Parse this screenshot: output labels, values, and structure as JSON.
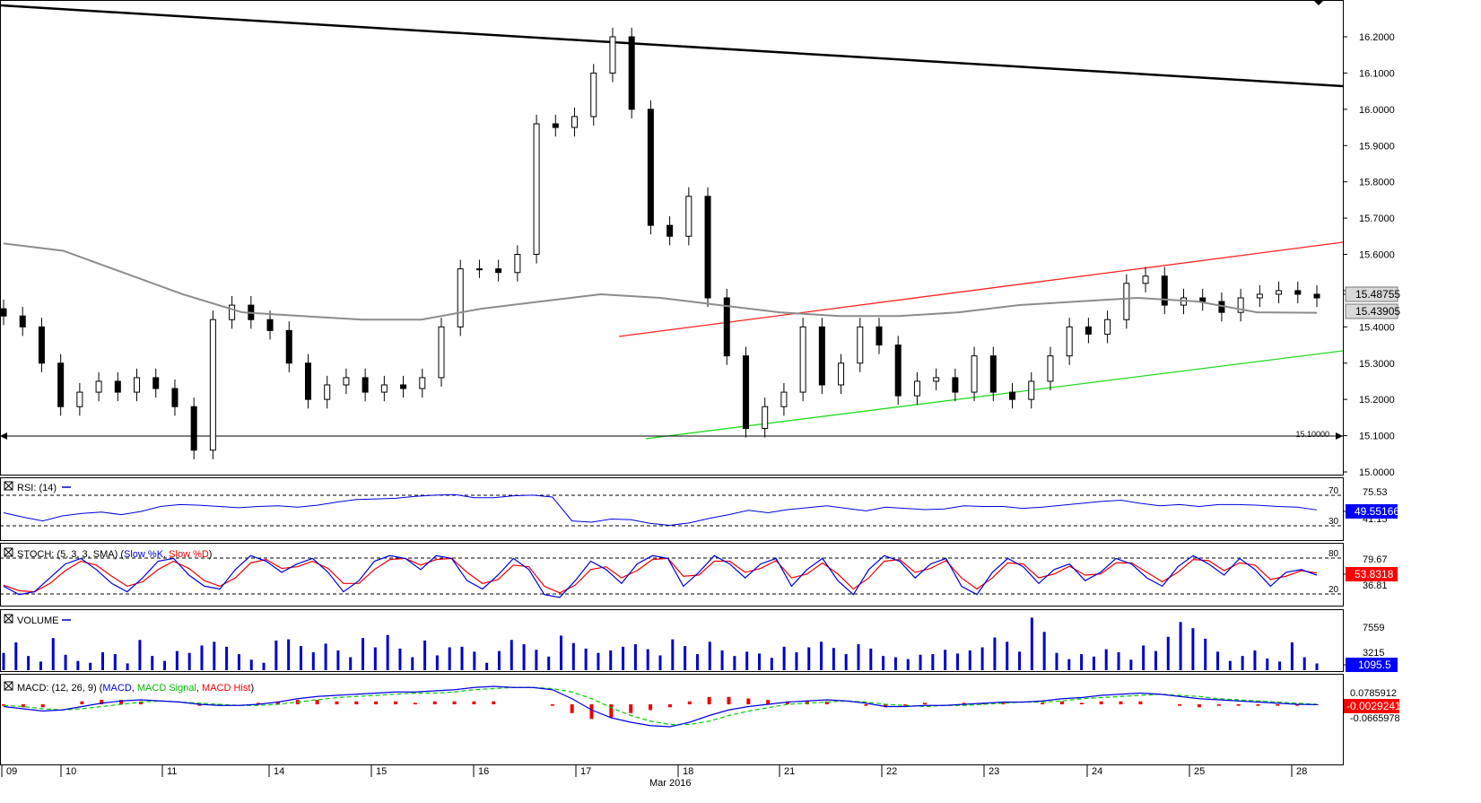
{
  "chart_data": {
    "type": "candlestick",
    "date_label": "Mar 2016",
    "x_labels": [
      "09",
      "10",
      "11",
      "14",
      "15",
      "16",
      "17",
      "18",
      "21",
      "22",
      "23",
      "24",
      "25",
      "28"
    ],
    "price": {
      "ylim": [
        15.0,
        16.25
      ],
      "ticks": [
        "16.2000",
        "16.1000",
        "16.0000",
        "15.9000",
        "15.8000",
        "15.7000",
        "15.6000",
        "15.5000",
        "15.4000",
        "15.3000",
        "15.2000",
        "15.1000",
        "15.0000"
      ],
      "close_series": [
        15.43,
        15.4,
        15.3,
        15.18,
        15.22,
        15.25,
        15.22,
        15.26,
        15.23,
        15.18,
        15.06,
        15.42,
        15.46,
        15.42,
        15.39,
        15.3,
        15.2,
        15.24,
        15.26,
        15.22,
        15.24,
        15.23,
        15.26,
        15.4,
        15.56,
        15.56,
        15.55,
        15.6,
        15.96,
        15.95,
        15.98,
        16.1,
        16.2,
        16.0,
        15.68,
        15.65,
        15.76,
        15.48,
        15.32,
        15.12,
        15.18,
        15.22,
        15.4,
        15.24,
        15.3,
        15.4,
        15.35,
        15.21,
        15.25,
        15.26,
        15.22,
        15.32,
        15.22,
        15.2,
        15.25,
        15.32,
        15.4,
        15.38,
        15.42,
        15.52,
        15.54,
        15.46,
        15.48,
        15.47,
        15.44,
        15.48,
        15.49,
        15.5,
        15.49,
        15.48
      ],
      "ma200_series": [
        15.63,
        15.61,
        15.55,
        15.49,
        15.44,
        15.43,
        15.42,
        15.42,
        15.45,
        15.47,
        15.49,
        15.48,
        15.46,
        15.44,
        15.43,
        15.43,
        15.44,
        15.46,
        15.47,
        15.48,
        15.47,
        15.44,
        15.439
      ],
      "last_price": "15.48755",
      "ma_value": "15.43905",
      "support_label": "15.10000",
      "support_level": 15.1
    },
    "rsi": {
      "label": "RSI: (14)",
      "levels": [
        "70",
        "30"
      ],
      "top_value": "75.53",
      "last_value": "49.55166",
      "hidden_value": "41.15",
      "values": [
        45,
        38,
        32,
        40,
        44,
        46,
        42,
        47,
        55,
        58,
        57,
        55,
        53,
        55,
        56,
        54,
        57,
        62,
        66,
        67,
        68,
        71,
        73,
        74,
        69,
        69,
        72,
        73,
        70,
        32,
        30,
        35,
        34,
        28,
        25,
        29,
        36,
        42,
        49,
        45,
        50,
        53,
        56,
        52,
        48,
        54,
        52,
        50,
        51,
        56,
        55,
        55,
        52,
        54,
        57,
        60,
        63,
        65,
        60,
        56,
        58,
        55,
        58,
        58,
        57,
        55,
        54,
        49.55
      ]
    },
    "stoch": {
      "label": "STOCH: (5, 3, 3, SMA)",
      "series_names": [
        "Slow %K",
        "Slow %D"
      ],
      "levels": [
        "80",
        "20"
      ],
      "top_value": "79.67",
      "last_value": "53.8318",
      "bottom_value": "36.81",
      "k": [
        30,
        15,
        20,
        45,
        70,
        80,
        60,
        35,
        20,
        45,
        75,
        80,
        50,
        30,
        25,
        60,
        85,
        75,
        55,
        70,
        80,
        55,
        20,
        40,
        75,
        85,
        80,
        60,
        85,
        80,
        40,
        25,
        50,
        80,
        60,
        15,
        10,
        40,
        75,
        60,
        35,
        70,
        85,
        80,
        30,
        55,
        85,
        70,
        45,
        70,
        80,
        30,
        60,
        80,
        40,
        15,
        60,
        85,
        75,
        45,
        70,
        80,
        30,
        15,
        55,
        80,
        65,
        35,
        60,
        70,
        40,
        55,
        80,
        70,
        45,
        30,
        65,
        85,
        70,
        50,
        80,
        60,
        30,
        55,
        60,
        50
      ],
      "d": [
        32,
        22,
        20,
        35,
        58,
        75,
        68,
        48,
        30,
        38,
        60,
        75,
        62,
        40,
        30,
        45,
        72,
        78,
        62,
        65,
        75,
        62,
        35,
        35,
        60,
        78,
        80,
        68,
        78,
        80,
        55,
        35,
        42,
        68,
        65,
        30,
        18,
        32,
        60,
        65,
        45,
        58,
        78,
        80,
        48,
        50,
        75,
        75,
        55,
        62,
        76,
        45,
        52,
        72,
        52,
        25,
        45,
        75,
        78,
        55,
        62,
        76,
        45,
        25,
        45,
        72,
        70,
        45,
        52,
        66,
        50,
        52,
        72,
        72,
        55,
        38,
        55,
        78,
        76,
        58,
        72,
        68,
        42,
        48,
        58,
        53.83
      ]
    },
    "volume": {
      "label": "VOLUME",
      "ticks": [
        "7559",
        "3215"
      ],
      "last_value": "1095.5",
      "values": [
        2800,
        4500,
        2300,
        1400,
        5200,
        2500,
        1500,
        1200,
        2900,
        2600,
        1100,
        4900,
        2300,
        1500,
        3100,
        2800,
        4000,
        4600,
        3800,
        2600,
        1700,
        1200,
        4800,
        5000,
        3900,
        2900,
        4300,
        3200,
        2100,
        5200,
        3700,
        5700,
        3500,
        2100,
        4800,
        2400,
        3700,
        3800,
        3000,
        1200,
        3100,
        4900,
        4200,
        3300,
        2200,
        5600,
        4400,
        3500,
        2800,
        3200,
        3800,
        4200,
        3400,
        2400,
        5000,
        3900,
        2600,
        4600,
        3200,
        2300,
        3000,
        2700,
        2000,
        3800,
        2900,
        3700,
        4600,
        3600,
        2600,
        4200,
        3500,
        2300,
        2100,
        1800,
        2500,
        2600,
        3300,
        2700,
        3200,
        3700,
        5300,
        4600,
        3000,
        8500,
        6200,
        2800,
        1800,
        2600,
        2200,
        3400,
        2900,
        1700,
        4000,
        3100,
        5400,
        7800,
        6800,
        5100,
        3000,
        1500,
        2300,
        3200,
        1900,
        1400,
        4500,
        2100,
        1095.5
      ]
    },
    "macd": {
      "label": "MACD: (12, 26, 9)",
      "series_names": [
        "MACD",
        "MACD Signal",
        "MACD Hist"
      ],
      "ticks": [
        "0.0785912",
        "-0.0665978"
      ],
      "last_value": "-0.0029241",
      "macd": [
        -0.02,
        -0.04,
        -0.06,
        -0.05,
        -0.02,
        0.01,
        0.03,
        0.04,
        0.03,
        0.02,
        0.0,
        -0.01,
        -0.01,
        0.0,
        0.02,
        0.05,
        0.07,
        0.08,
        0.09,
        0.1,
        0.11,
        0.11,
        0.12,
        0.13,
        0.15,
        0.16,
        0.15,
        0.15,
        0.13,
        0.05,
        -0.05,
        -0.12,
        -0.16,
        -0.19,
        -0.2,
        -0.16,
        -0.1,
        -0.05,
        -0.02,
        0.0,
        0.02,
        0.03,
        0.04,
        0.03,
        0.01,
        -0.02,
        -0.02,
        -0.01,
        -0.01,
        0.0,
        0.01,
        0.02,
        0.02,
        0.03,
        0.05,
        0.06,
        0.08,
        0.09,
        0.1,
        0.09,
        0.07,
        0.05,
        0.04,
        0.03,
        0.02,
        0.01,
        0.0,
        -0.003
      ],
      "signal": [
        -0.01,
        -0.02,
        -0.04,
        -0.05,
        -0.04,
        -0.02,
        0.0,
        0.02,
        0.03,
        0.02,
        0.01,
        0.0,
        -0.01,
        -0.01,
        0.0,
        0.02,
        0.04,
        0.06,
        0.07,
        0.08,
        0.09,
        0.1,
        0.1,
        0.11,
        0.13,
        0.14,
        0.15,
        0.15,
        0.14,
        0.11,
        0.05,
        -0.03,
        -0.1,
        -0.15,
        -0.18,
        -0.18,
        -0.15,
        -0.1,
        -0.06,
        -0.03,
        0.0,
        0.01,
        0.02,
        0.03,
        0.02,
        0.0,
        -0.01,
        -0.02,
        -0.01,
        -0.01,
        0.0,
        0.01,
        0.02,
        0.02,
        0.03,
        0.05,
        0.06,
        0.07,
        0.08,
        0.09,
        0.08,
        0.07,
        0.05,
        0.04,
        0.03,
        0.02,
        0.01,
        0.0
      ]
    }
  }
}
